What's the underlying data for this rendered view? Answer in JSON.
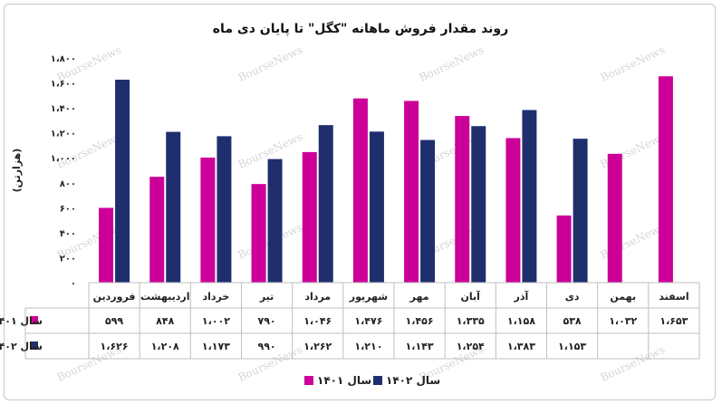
{
  "chart_data": {
    "type": "bar",
    "title": "روند مقدار فروش ماهانه \"کگل\" تا پایان دی ماه",
    "ylabel": "(هزارتن)",
    "ylim": [
      0,
      1800
    ],
    "yticks": [
      0,
      200,
      400,
      600,
      800,
      1000,
      1200,
      1400,
      1600,
      1800
    ],
    "ytick_labels": [
      "۰",
      "۲۰۰",
      "۴۰۰",
      "۶۰۰",
      "۸۰۰",
      "۱،۰۰۰",
      "۱،۲۰۰",
      "۱،۴۰۰",
      "۱،۶۰۰",
      "۱،۸۰۰"
    ],
    "categories": [
      "فروردین",
      "اردیبهشت",
      "خرداد",
      "تیر",
      "مرداد",
      "شهریور",
      "مهر",
      "آبان",
      "آذر",
      "دی",
      "بهمن",
      "اسفند"
    ],
    "series": [
      {
        "name": "سال ۱۴۰۱",
        "color": "#cc0099",
        "values": [
          599,
          848,
          1002,
          790,
          1046,
          1476,
          1456,
          1335,
          1158,
          538,
          1032,
          1653
        ],
        "labels": [
          "۵۹۹",
          "۸۴۸",
          "۱،۰۰۲",
          "۷۹۰",
          "۱،۰۴۶",
          "۱،۴۷۶",
          "۱،۴۵۶",
          "۱،۳۳۵",
          "۱،۱۵۸",
          "۵۳۸",
          "۱،۰۳۲",
          "۱،۶۵۳"
        ]
      },
      {
        "name": "سال ۱۴۰۲",
        "color": "#1f2f6e",
        "values": [
          1626,
          1208,
          1173,
          990,
          1262,
          1210,
          1143,
          1254,
          1383,
          1153,
          null,
          null
        ],
        "labels": [
          "۱،۶۲۶",
          "۱،۲۰۸",
          "۱،۱۷۳",
          "۹۹۰",
          "۱،۲۶۲",
          "۱،۲۱۰",
          "۱،۱۴۳",
          "۱،۲۵۴",
          "۱،۳۸۳",
          "۱،۱۵۳",
          "",
          ""
        ]
      }
    ],
    "legend_position": "bottom-center",
    "grid": false,
    "watermark": "BourseNews"
  }
}
